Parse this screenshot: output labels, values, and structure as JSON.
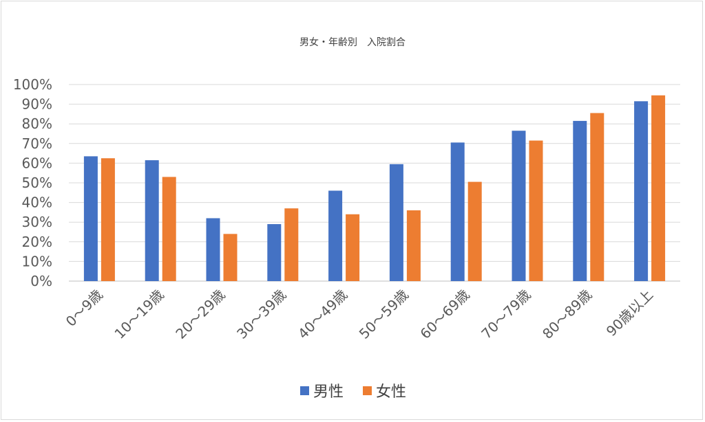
{
  "chart_data": {
    "type": "bar",
    "title": "男女・年齢別　入院割合",
    "xlabel": "",
    "ylabel": "",
    "categories": [
      "0～9歳",
      "10～19歳",
      "20～29歳",
      "30～39歳",
      "40～49歳",
      "50～59歳",
      "60～69歳",
      "70～79歳",
      "80～89歳",
      "90歳以上"
    ],
    "series": [
      {
        "name": "男性",
        "color": "#4472c4",
        "values": [
          63.5,
          61.5,
          32,
          29,
          46,
          59.5,
          70.5,
          76.5,
          81.5,
          91.5
        ]
      },
      {
        "name": "女性",
        "color": "#ed7d31",
        "values": [
          62.5,
          53,
          24,
          37,
          34,
          36,
          50.5,
          71.5,
          85.5,
          94.5
        ]
      }
    ],
    "ylim": [
      0,
      100
    ],
    "yticks": [
      "0%",
      "10%",
      "20%",
      "30%",
      "40%",
      "50%",
      "60%",
      "70%",
      "80%",
      "90%",
      "100%"
    ],
    "grid": true,
    "legend_position": "bottom"
  }
}
